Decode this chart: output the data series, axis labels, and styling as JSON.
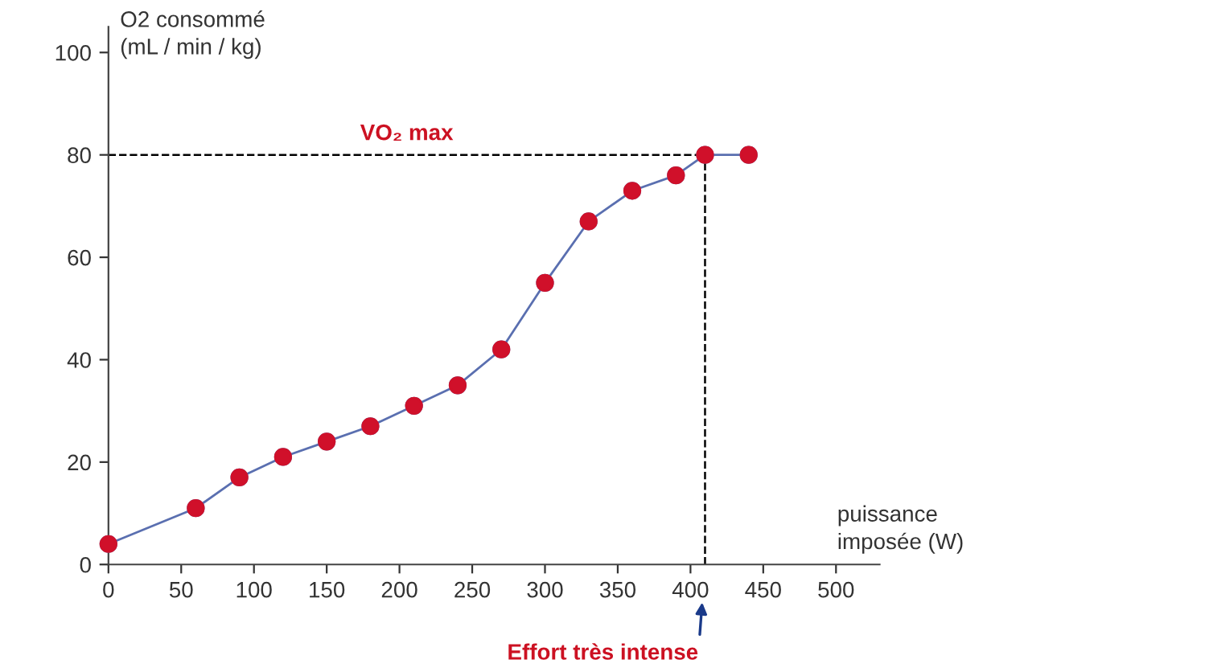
{
  "chart_data": {
    "type": "line",
    "xlabel": "puissance\nimposée (W)",
    "ylabel": "O2 consommé\n(mL / min / kg)",
    "x": [
      0,
      60,
      90,
      120,
      150,
      180,
      210,
      240,
      270,
      300,
      330,
      360,
      390,
      410,
      440
    ],
    "series": [
      {
        "color": "#5a6fb0",
        "colors": [
          "#d0102a",
          "#d0102a",
          "#d0102a",
          "#d0102a",
          "#d0102a",
          "#d0102a",
          "#d0102a",
          "#d0102a",
          "#d0102a",
          "#d0102a",
          "#d0102a",
          "#d0102a",
          "#d0102a",
          "#d0102a",
          "#d0102a"
        ],
        "values": [
          4,
          11,
          17,
          21,
          24,
          27,
          31,
          35,
          42,
          55,
          67,
          73,
          76,
          80,
          80
        ]
      }
    ],
    "xlim": [
      0,
      530
    ],
    "ylim": [
      0,
      105
    ],
    "xticks": [
      0,
      50,
      100,
      150,
      200,
      250,
      300,
      350,
      400,
      450,
      500
    ],
    "yticks": [
      0,
      20,
      40,
      60,
      80,
      100
    ],
    "marker": "circle",
    "line_style": "solid",
    "grid": false,
    "legend": false,
    "ref_lines": [
      {
        "axis": "y",
        "value": 80,
        "label": "VO₂ max",
        "color": "#000000",
        "line_style": "dashed"
      },
      {
        "axis": "x",
        "value": 410,
        "color": "#000000",
        "line_style": "dashed"
      }
    ],
    "annotations": [
      "Effort très intense"
    ]
  }
}
